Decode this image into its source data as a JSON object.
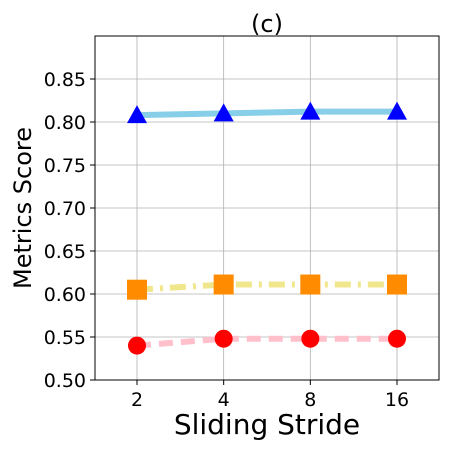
{
  "chart_data": {
    "type": "line",
    "title": "(c)",
    "xlabel": "Sliding Stride",
    "ylabel": "Metrics Score",
    "x": [
      "2",
      "4",
      "8",
      "16"
    ],
    "ylim": [
      0.5,
      0.9
    ],
    "yticks": [
      "0.50",
      "0.55",
      "0.60",
      "0.65",
      "0.70",
      "0.75",
      "0.80",
      "0.85"
    ],
    "grid": true,
    "legend": "none",
    "series": [
      {
        "values": [
          0.808,
          0.81,
          0.812,
          0.812
        ],
        "line_color": "#87cee8",
        "marker_color": "#0000ff",
        "marker": "triangle",
        "line_style": "solid"
      },
      {
        "values": [
          0.605,
          0.611,
          0.611,
          0.611
        ],
        "line_color": "#f0e68c",
        "marker_color": "#ff8c00",
        "marker": "square",
        "line_style": "dashdot"
      },
      {
        "values": [
          0.54,
          0.548,
          0.548,
          0.548
        ],
        "line_color": "#ffc0cb",
        "marker_color": "#ff0000",
        "marker": "circle",
        "line_style": "dashed"
      }
    ]
  }
}
